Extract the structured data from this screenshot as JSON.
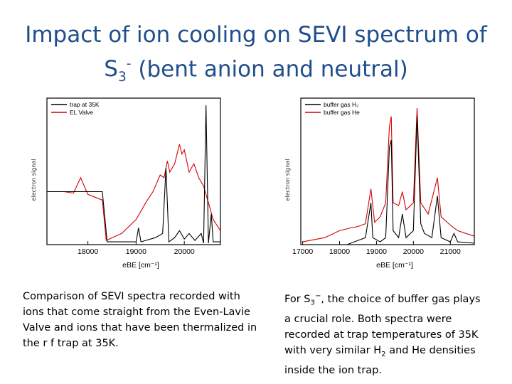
{
  "slide": {
    "title_line1": "Impact of ion cooling on SEVI spectrum of",
    "title_s": "S",
    "title_sub": "3",
    "title_sup": "-",
    "title_rest": " (bent anion and neutral)"
  },
  "captions": {
    "left": "Comparison of SEVI spectra recorded with ions that come straight from the Even-Lavie Valve and ions that have been thermalized in the r f trap at 35K.",
    "right_p1": "For S",
    "right_sub1": "3",
    "right_sup1": "−",
    "right_p2": ", the choice of buffer gas plays a crucial role. Both spectra were recorded at trap temperatures of 35K with very similar H",
    "right_sub2": "2",
    "right_p3": " and He densities inside the ion trap."
  },
  "chart_data": [
    {
      "type": "line",
      "xlabel": "eBE [cm⁻¹]",
      "ylabel": "electron signal",
      "xlim": [
        17150,
        20750
      ],
      "ylim": [
        0,
        1
      ],
      "xticks": [
        18000,
        19000,
        20000
      ],
      "legend_position": "top-left",
      "series": [
        {
          "name": "trap at 35K",
          "color": "#000000",
          "points": [
            [
              17160,
              0.38
            ],
            [
              17700,
              0.38
            ],
            [
              18300,
              0.38
            ],
            [
              18400,
              0.02
            ],
            [
              18700,
              0.02
            ],
            [
              19000,
              0.02
            ],
            [
              19050,
              0.12
            ],
            [
              19100,
              0.02
            ],
            [
              19400,
              0.05
            ],
            [
              19550,
              0.08
            ],
            [
              19620,
              0.55
            ],
            [
              19680,
              0.02
            ],
            [
              19800,
              0.05
            ],
            [
              19900,
              0.1
            ],
            [
              20000,
              0.04
            ],
            [
              20100,
              0.08
            ],
            [
              20220,
              0.03
            ],
            [
              20350,
              0.08
            ],
            [
              20400,
              0.01
            ],
            [
              20450,
              1.0
            ],
            [
              20500,
              0.01
            ],
            [
              20560,
              0.22
            ],
            [
              20600,
              0.02
            ],
            [
              20750,
              0.02
            ]
          ]
        },
        {
          "name": "EL Valve",
          "color": "#d40000",
          "points": [
            [
              17160,
              0.38
            ],
            [
              17500,
              0.38
            ],
            [
              17700,
              0.37
            ],
            [
              17850,
              0.48
            ],
            [
              18000,
              0.36
            ],
            [
              18300,
              0.32
            ],
            [
              18380,
              0.03
            ],
            [
              18700,
              0.08
            ],
            [
              19000,
              0.18
            ],
            [
              19200,
              0.3
            ],
            [
              19350,
              0.38
            ],
            [
              19500,
              0.5
            ],
            [
              19580,
              0.48
            ],
            [
              19650,
              0.6
            ],
            [
              19700,
              0.52
            ],
            [
              19800,
              0.58
            ],
            [
              19900,
              0.72
            ],
            [
              19950,
              0.65
            ],
            [
              20000,
              0.68
            ],
            [
              20100,
              0.52
            ],
            [
              20200,
              0.58
            ],
            [
              20300,
              0.48
            ],
            [
              20400,
              0.42
            ],
            [
              20500,
              0.3
            ],
            [
              20600,
              0.18
            ],
            [
              20750,
              0.1
            ]
          ]
        }
      ]
    },
    {
      "type": "line",
      "xlabel": "eBE [cm⁻¹]",
      "ylabel": "electron signal",
      "xlim": [
        16950,
        21650
      ],
      "ylim": [
        0,
        1
      ],
      "xticks": [
        17000,
        18000,
        19000,
        20000,
        21000
      ],
      "legend_position": "top-left",
      "series": [
        {
          "name": "buffer gas H₂",
          "color": "#000000",
          "points": [
            [
              17000,
              0.0
            ],
            [
              18200,
              0.0
            ],
            [
              18500,
              0.03
            ],
            [
              18700,
              0.05
            ],
            [
              18850,
              0.3
            ],
            [
              18900,
              0.05
            ],
            [
              19100,
              0.02
            ],
            [
              19250,
              0.05
            ],
            [
              19350,
              0.7
            ],
            [
              19400,
              0.75
            ],
            [
              19450,
              0.1
            ],
            [
              19600,
              0.05
            ],
            [
              19700,
              0.22
            ],
            [
              19800,
              0.05
            ],
            [
              20000,
              0.1
            ],
            [
              20100,
              0.92
            ],
            [
              20200,
              0.15
            ],
            [
              20300,
              0.08
            ],
            [
              20500,
              0.05
            ],
            [
              20650,
              0.35
            ],
            [
              20750,
              0.05
            ],
            [
              21000,
              0.02
            ],
            [
              21100,
              0.08
            ],
            [
              21200,
              0.02
            ],
            [
              21650,
              0.01
            ]
          ]
        },
        {
          "name": "buffer gas He",
          "color": "#d40000",
          "points": [
            [
              17000,
              0.02
            ],
            [
              17600,
              0.05
            ],
            [
              18000,
              0.1
            ],
            [
              18300,
              0.12
            ],
            [
              18500,
              0.13
            ],
            [
              18700,
              0.15
            ],
            [
              18850,
              0.4
            ],
            [
              18950,
              0.16
            ],
            [
              19100,
              0.2
            ],
            [
              19250,
              0.3
            ],
            [
              19350,
              0.85
            ],
            [
              19400,
              0.92
            ],
            [
              19450,
              0.3
            ],
            [
              19600,
              0.28
            ],
            [
              19700,
              0.38
            ],
            [
              19800,
              0.25
            ],
            [
              20000,
              0.3
            ],
            [
              20100,
              0.98
            ],
            [
              20200,
              0.3
            ],
            [
              20400,
              0.22
            ],
            [
              20650,
              0.48
            ],
            [
              20750,
              0.2
            ],
            [
              21000,
              0.14
            ],
            [
              21200,
              0.1
            ],
            [
              21650,
              0.06
            ]
          ]
        }
      ]
    }
  ]
}
